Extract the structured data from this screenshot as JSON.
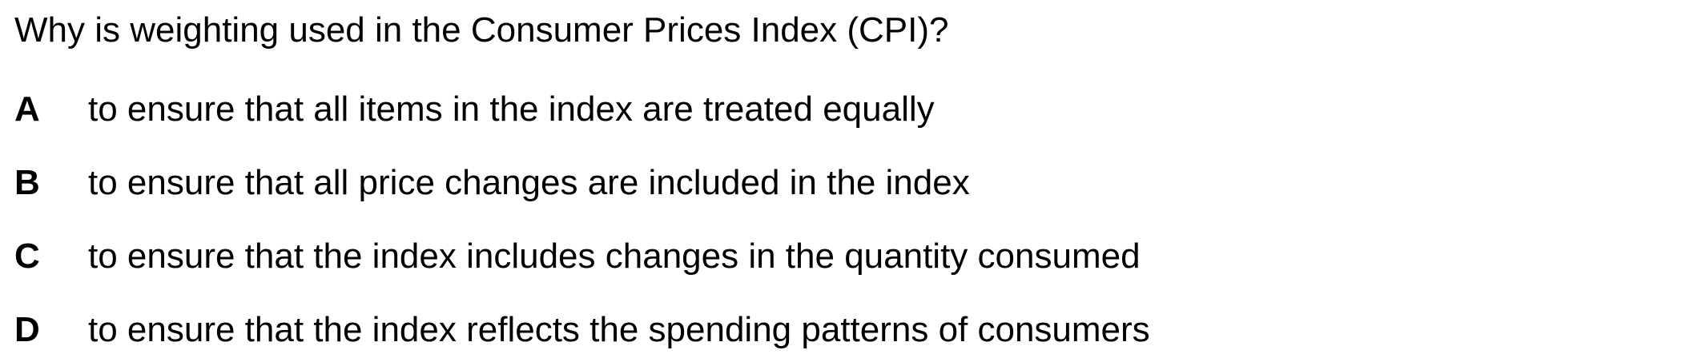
{
  "question": "Why is weighting used in the Consumer Prices Index (CPI)?",
  "options": [
    {
      "letter": "A",
      "text": "to ensure that all items in the index are treated equally"
    },
    {
      "letter": "B",
      "text": "to ensure that all price changes are included in the index"
    },
    {
      "letter": "C",
      "text": "to ensure that the index includes changes in the quantity consumed"
    },
    {
      "letter": "D",
      "text": "to ensure that the index reflects the spending patterns of consumers"
    }
  ]
}
